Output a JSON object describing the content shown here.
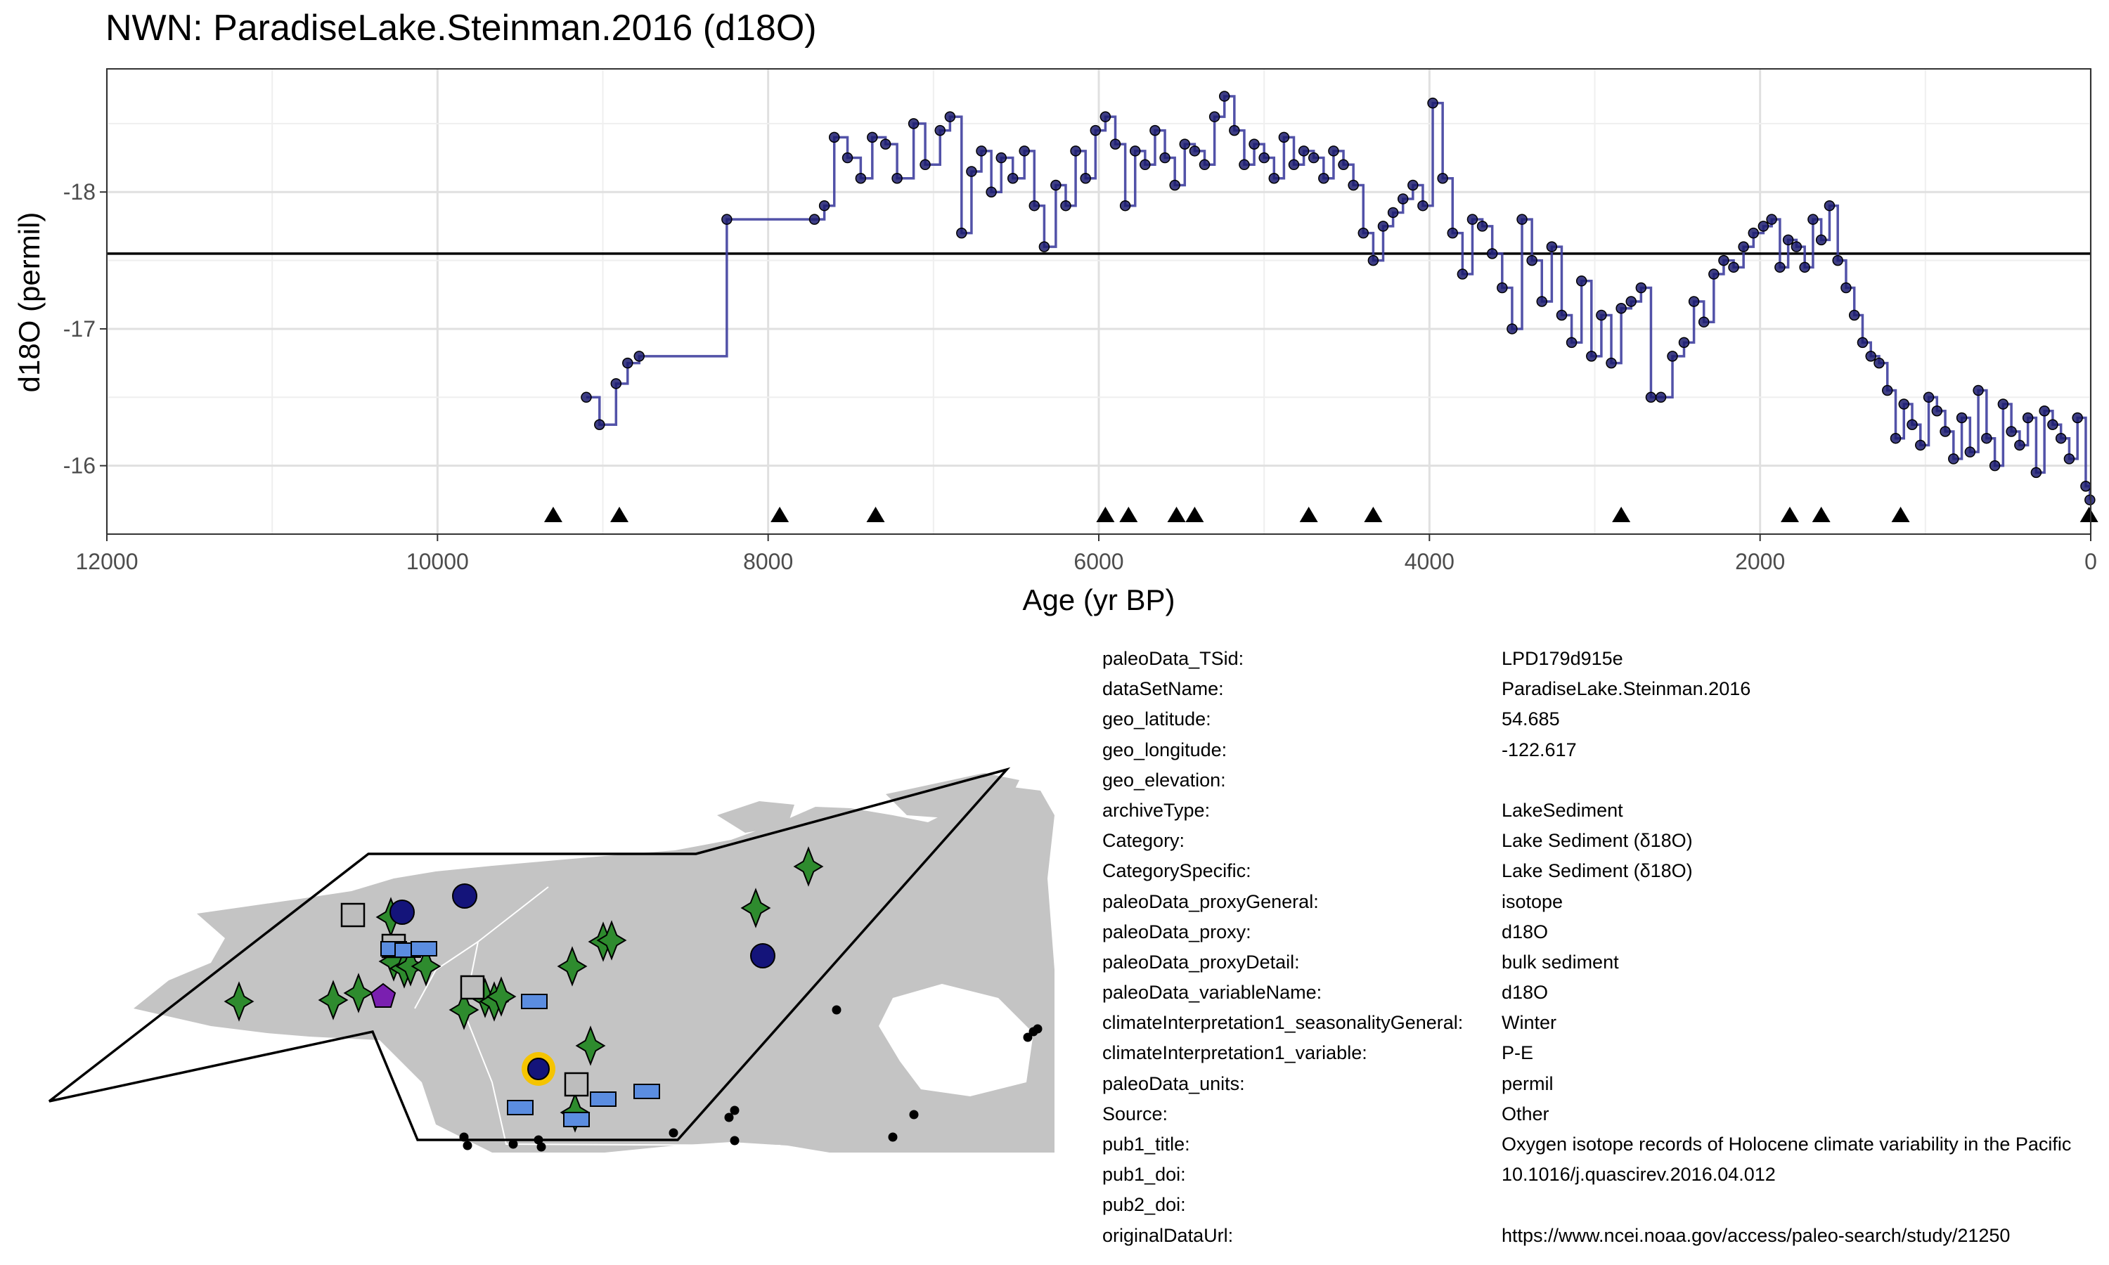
{
  "chart_data": {
    "type": "line",
    "title": "NWN: ParadiseLake.Steinman.2016 (d18O)",
    "xlabel": "Age (yr BP)",
    "ylabel": "d18O (permil)",
    "x_reversed": true,
    "y_reversed": true,
    "xlim": [
      12000,
      0
    ],
    "ylim": [
      -18.9,
      -15.5
    ],
    "x_ticks": [
      12000,
      10000,
      8000,
      6000,
      4000,
      2000,
      0
    ],
    "y_ticks": [
      -18,
      -17,
      -16
    ],
    "grid": true,
    "line_color": "#3f3f9f",
    "point_color": "#1c1c6e",
    "mean_line": -17.55,
    "series": [
      {
        "values_note": "",
        "x": [
          9100,
          9020,
          8920,
          8850,
          8780,
          8250,
          7720,
          7660,
          7600,
          7520,
          7440,
          7370,
          7290,
          7220,
          7120,
          7050,
          6960,
          6900,
          6830,
          6770,
          6710,
          6650,
          6590,
          6520,
          6450,
          6390,
          6330,
          6260,
          6200,
          6140,
          6080,
          6020,
          5960,
          5900,
          5840,
          5780,
          5720,
          5660,
          5600,
          5540,
          5480,
          5420,
          5360,
          5300,
          5240,
          5180,
          5120,
          5060,
          5000,
          4940,
          4880,
          4820,
          4760,
          4700,
          4640,
          4580,
          4520,
          4460,
          4400,
          4340,
          4280,
          4220,
          4160,
          4100,
          4040,
          3980,
          3920,
          3860,
          3800,
          3740,
          3680,
          3620,
          3560,
          3500,
          3440,
          3380,
          3320,
          3260,
          3200,
          3140,
          3080,
          3020,
          2960,
          2900,
          2840,
          2780,
          2720,
          2660,
          2600,
          2530,
          2460,
          2400,
          2340,
          2280,
          2220,
          2160,
          2100,
          2040,
          1980,
          1930,
          1880,
          1830,
          1780,
          1730,
          1680,
          1630,
          1580,
          1530,
          1480,
          1430,
          1380,
          1330,
          1280,
          1230,
          1180,
          1130,
          1080,
          1030,
          980,
          930,
          880,
          830,
          780,
          730,
          680,
          630,
          580,
          530,
          480,
          430,
          380,
          330,
          280,
          230,
          180,
          130,
          80,
          30,
          5
        ],
        "y": [
          -16.5,
          -16.3,
          -16.6,
          -16.75,
          -16.8,
          -17.8,
          -17.8,
          -17.9,
          -18.4,
          -18.25,
          -18.1,
          -18.4,
          -18.35,
          -18.1,
          -18.5,
          -18.2,
          -18.45,
          -18.55,
          -17.7,
          -18.15,
          -18.3,
          -18.0,
          -18.25,
          -18.1,
          -18.3,
          -17.9,
          -17.6,
          -18.05,
          -17.9,
          -18.3,
          -18.1,
          -18.45,
          -18.55,
          -18.35,
          -17.9,
          -18.3,
          -18.2,
          -18.45,
          -18.25,
          -18.05,
          -18.35,
          -18.3,
          -18.2,
          -18.55,
          -18.7,
          -18.45,
          -18.2,
          -18.35,
          -18.25,
          -18.1,
          -18.4,
          -18.2,
          -18.3,
          -18.25,
          -18.1,
          -18.3,
          -18.2,
          -18.05,
          -17.7,
          -17.5,
          -17.75,
          -17.85,
          -17.95,
          -18.05,
          -17.9,
          -18.65,
          -18.1,
          -17.7,
          -17.4,
          -17.8,
          -17.75,
          -17.55,
          -17.3,
          -17.0,
          -17.8,
          -17.5,
          -17.2,
          -17.6,
          -17.1,
          -16.9,
          -17.35,
          -16.8,
          -17.1,
          -16.75,
          -17.15,
          -17.2,
          -17.3,
          -16.5,
          -16.5,
          -16.8,
          -16.9,
          -17.2,
          -17.05,
          -17.4,
          -17.5,
          -17.45,
          -17.6,
          -17.7,
          -17.75,
          -17.8,
          -17.45,
          -17.65,
          -17.6,
          -17.45,
          -17.8,
          -17.65,
          -17.9,
          -17.5,
          -17.3,
          -17.1,
          -16.9,
          -16.8,
          -16.75,
          -16.55,
          -16.2,
          -16.45,
          -16.3,
          -16.15,
          -16.5,
          -16.4,
          -16.25,
          -16.05,
          -16.35,
          -16.1,
          -16.55,
          -16.2,
          -16.0,
          -16.45,
          -16.25,
          -16.15,
          -16.35,
          -15.95,
          -16.4,
          -16.3,
          -16.2,
          -16.05,
          -16.35,
          -15.85,
          -15.75
        ]
      }
    ],
    "age_markers": [
      9300,
      8900,
      7930,
      7350,
      5960,
      5820,
      5530,
      5420,
      4730,
      4340,
      2840,
      1820,
      1630,
      1150,
      10
    ]
  },
  "metadata": [
    {
      "key": "paleoData_TSid:",
      "value": "LPD179d915e"
    },
    {
      "key": "dataSetName:",
      "value": "ParadiseLake.Steinman.2016"
    },
    {
      "key": "geo_latitude:",
      "value": "54.685"
    },
    {
      "key": "geo_longitude:",
      "value": "-122.617"
    },
    {
      "key": "geo_elevation:",
      "value": ""
    },
    {
      "key": "archiveType:",
      "value": "LakeSediment"
    },
    {
      "key": "Category:",
      "value": "Lake Sediment (δ18O)"
    },
    {
      "key": "CategorySpecific:",
      "value": "Lake Sediment (δ18O)"
    },
    {
      "key": "paleoData_proxyGeneral:",
      "value": "isotope"
    },
    {
      "key": "paleoData_proxy:",
      "value": "d18O"
    },
    {
      "key": "paleoData_proxyDetail:",
      "value": "bulk sediment"
    },
    {
      "key": "paleoData_variableName:",
      "value": "d18O"
    },
    {
      "key": "climateInterpretation1_seasonalityGeneral:",
      "value": "Winter"
    },
    {
      "key": "climateInterpretation1_variable:",
      "value": "P-E"
    },
    {
      "key": "paleoData_units:",
      "value": "permil"
    },
    {
      "key": "Source:",
      "value": "Other"
    },
    {
      "key": "pub1_title:",
      "value": "Oxygen isotope records of Holocene climate variability in the Pacific"
    },
    {
      "key": "pub1_doi:",
      "value": "10.1016/j.quascirev.2016.04.012"
    },
    {
      "key": "pub2_doi:",
      "value": ""
    },
    {
      "key": "originalDataUrl:",
      "value": "https://www.ncei.noaa.gov/access/paleo-search/study/21250"
    }
  ],
  "map": {
    "colors": {
      "land": "#c4c4c4",
      "star": "#2e8b2e",
      "circle": "#14147a",
      "square_gray": "#bdbdbd",
      "rect_blue": "#5b8de0",
      "pentagon": "#7a1fb0",
      "highlight": "#f5c400"
    }
  }
}
